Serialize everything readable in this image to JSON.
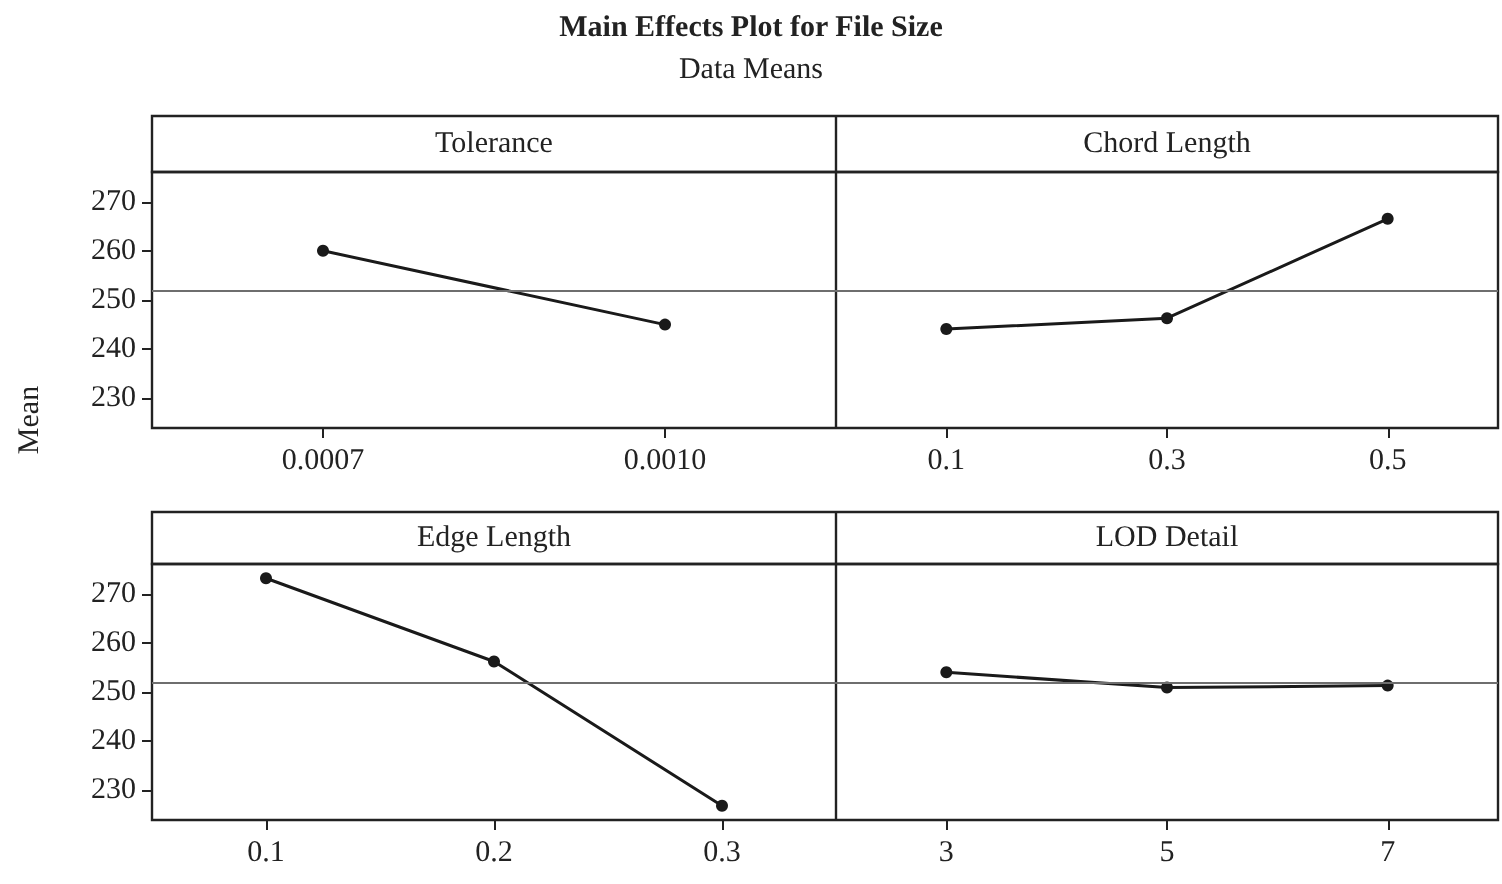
{
  "chart_data": [
    {
      "type": "line",
      "title": "Tolerance",
      "annotations": [
        "Main Effects Plot for File Size",
        "Data Means"
      ],
      "ylabel": "Mean",
      "categories": [
        "0.0007",
        "0.0010"
      ],
      "series": [
        {
          "color": "#1a1a1a",
          "values": [
            260,
            245
          ]
        }
      ],
      "ylim": [
        224,
        276
      ],
      "yticks": [
        230,
        240,
        250,
        260,
        270
      ],
      "ref_lines": [
        {
          "axis": "y",
          "value": 252,
          "color": "#6e6e6e"
        }
      ],
      "marker": "circle",
      "line_style": "solid",
      "grid": false
    },
    {
      "type": "line",
      "title": "Chord Length",
      "categories": [
        "0.1",
        "0.3",
        "0.5"
      ],
      "series": [
        {
          "color": "#1a1a1a",
          "values": [
            244.1,
            246.3,
            266.5
          ]
        }
      ],
      "ylim": [
        224,
        276
      ],
      "yticks": [
        230,
        240,
        250,
        260,
        270
      ],
      "ref_lines": [
        {
          "axis": "y",
          "value": 252,
          "color": "#6e6e6e"
        }
      ],
      "marker": "circle",
      "line_style": "solid",
      "grid": false,
      "tick_labels": "x"
    },
    {
      "type": "line",
      "title": "Edge Length",
      "categories": [
        "0.1",
        "0.2",
        "0.3"
      ],
      "series": [
        {
          "color": "#1a1a1a",
          "values": [
            273.1,
            256.2,
            226.9
          ]
        }
      ],
      "ylim": [
        224,
        276
      ],
      "yticks": [
        230,
        240,
        250,
        260,
        270
      ],
      "ref_lines": [
        {
          "axis": "y",
          "value": 252,
          "color": "#6e6e6e"
        }
      ],
      "marker": "circle",
      "line_style": "solid",
      "grid": false
    },
    {
      "type": "line",
      "title": "LOD Detail",
      "categories": [
        "3",
        "5",
        "7"
      ],
      "series": [
        {
          "color": "#1a1a1a",
          "values": [
            254.0,
            250.9,
            251.3
          ]
        }
      ],
      "ylim": [
        224,
        276
      ],
      "yticks": [
        230,
        240,
        250,
        260,
        270
      ],
      "ref_lines": [
        {
          "axis": "y",
          "value": 252,
          "color": "#6e6e6e"
        }
      ],
      "marker": "circle",
      "line_style": "solid",
      "grid": false,
      "tick_labels": "x"
    }
  ]
}
